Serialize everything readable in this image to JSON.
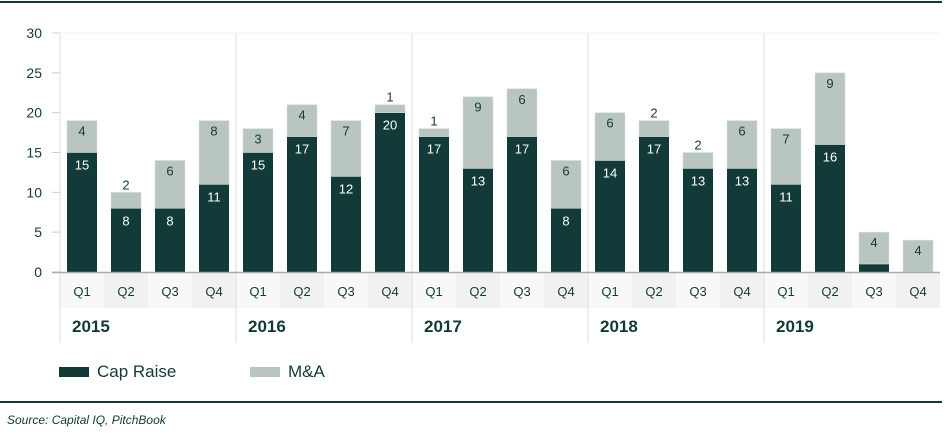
{
  "chart_data": {
    "type": "bar",
    "stacked": true,
    "categories": [
      "Q1",
      "Q2",
      "Q3",
      "Q4",
      "Q1",
      "Q2",
      "Q3",
      "Q4",
      "Q1",
      "Q2",
      "Q3",
      "Q4",
      "Q1",
      "Q2",
      "Q3",
      "Q4",
      "Q1",
      "Q2",
      "Q3",
      "Q4"
    ],
    "groups": [
      "2015",
      "2016",
      "2017",
      "2018",
      "2019"
    ],
    "series": [
      {
        "name": "Cap Raise",
        "color": "#113a39",
        "values": [
          15,
          8,
          8,
          11,
          15,
          17,
          12,
          20,
          17,
          13,
          17,
          8,
          14,
          17,
          13,
          13,
          11,
          16,
          1,
          0
        ]
      },
      {
        "name": "M&A",
        "color": "#b8c5c1",
        "values": [
          4,
          2,
          6,
          8,
          3,
          4,
          7,
          1,
          1,
          9,
          6,
          6,
          6,
          2,
          2,
          6,
          7,
          9,
          4,
          4
        ]
      }
    ],
    "yticks": [
      0,
      5,
      10,
      15,
      20,
      25,
      30
    ],
    "ylim": [
      0,
      30
    ],
    "legend_position": "bottom-left",
    "source": "Source: Capital IQ, PitchBook"
  }
}
